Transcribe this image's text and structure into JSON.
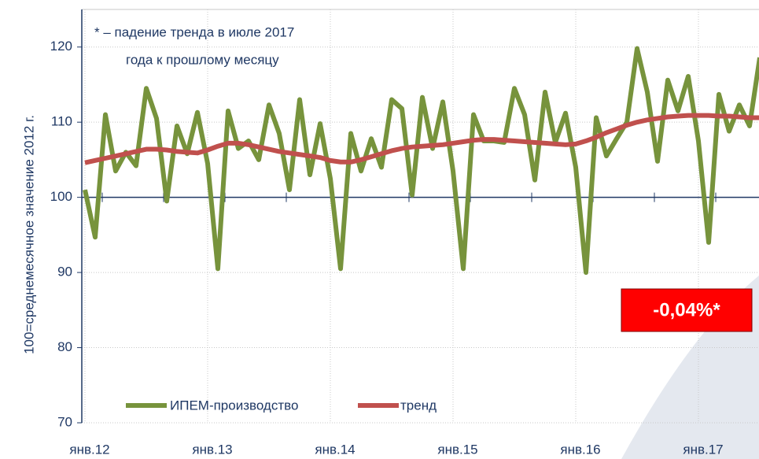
{
  "chart_data": {
    "type": "line",
    "ylabel": "100=среднемесячное значение 2012 г.",
    "annotation": [
      "* – падение тренда в июле 2017",
      "года к прошлому месяцу"
    ],
    "callout": "-0,04%*",
    "categories": [
      "янв.12",
      null,
      null,
      null,
      null,
      null,
      null,
      null,
      null,
      null,
      null,
      null,
      "янв.13",
      null,
      null,
      null,
      null,
      null,
      null,
      null,
      null,
      null,
      null,
      null,
      "янв.14",
      null,
      null,
      null,
      null,
      null,
      null,
      null,
      null,
      null,
      null,
      null,
      "янв.15",
      null,
      null,
      null,
      null,
      null,
      null,
      null,
      null,
      null,
      null,
      null,
      "янв.16",
      null,
      null,
      null,
      null,
      null,
      null,
      null,
      null,
      null,
      null,
      null,
      "янв.17",
      null,
      null,
      null,
      null,
      null,
      null
    ],
    "series": [
      {
        "name": "ИПЕМ-производство",
        "color": "#77933c",
        "values": [
          101,
          94.7,
          111,
          103.5,
          106,
          104.2,
          114.5,
          110.5,
          99.5,
          109.5,
          105.8,
          111.3,
          104.5,
          90.5,
          111.5,
          106.5,
          107.5,
          105,
          112.3,
          108.5,
          101,
          113,
          103,
          109.8,
          102.5,
          90.5,
          108.5,
          103.5,
          107.8,
          104,
          113,
          111.8,
          100.3,
          113.3,
          106.5,
          112.7,
          103.5,
          90.5,
          111,
          107.5,
          107.5,
          107.3,
          114.5,
          111,
          102.3,
          114,
          107.3,
          111.2,
          104,
          90,
          110.6,
          105.5,
          107.8,
          110,
          119.8,
          114,
          104.8,
          115.6,
          111.5,
          116.1,
          107.5,
          94,
          113.7,
          108.8,
          112.3,
          109.5,
          118.6
        ]
      },
      {
        "name": "тренд",
        "color": "#c0504d",
        "values": [
          104.6,
          104.9,
          105.2,
          105.5,
          105.8,
          106.1,
          106.4,
          106.4,
          106.3,
          106.1,
          106.0,
          105.9,
          106.3,
          106.8,
          107.2,
          107.2,
          107.0,
          106.7,
          106.4,
          106.1,
          105.9,
          105.7,
          105.5,
          105.3,
          104.9,
          104.7,
          104.7,
          105.0,
          105.4,
          105.8,
          106.2,
          106.5,
          106.7,
          106.8,
          106.9,
          107.0,
          107.2,
          107.4,
          107.6,
          107.7,
          107.7,
          107.6,
          107.5,
          107.4,
          107.3,
          107.2,
          107.1,
          107.0,
          107.1,
          107.5,
          108.0,
          108.6,
          109.1,
          109.6,
          110.0,
          110.3,
          110.5,
          110.7,
          110.8,
          110.9,
          110.9,
          110.9,
          110.8,
          110.8,
          110.7,
          110.6,
          110.6
        ]
      }
    ],
    "ylim": [
      70,
      125
    ],
    "yticks": [
      70,
      80,
      90,
      100,
      110,
      120
    ],
    "x_axis_crossing": 100,
    "grid": true,
    "legend": "bottom"
  }
}
